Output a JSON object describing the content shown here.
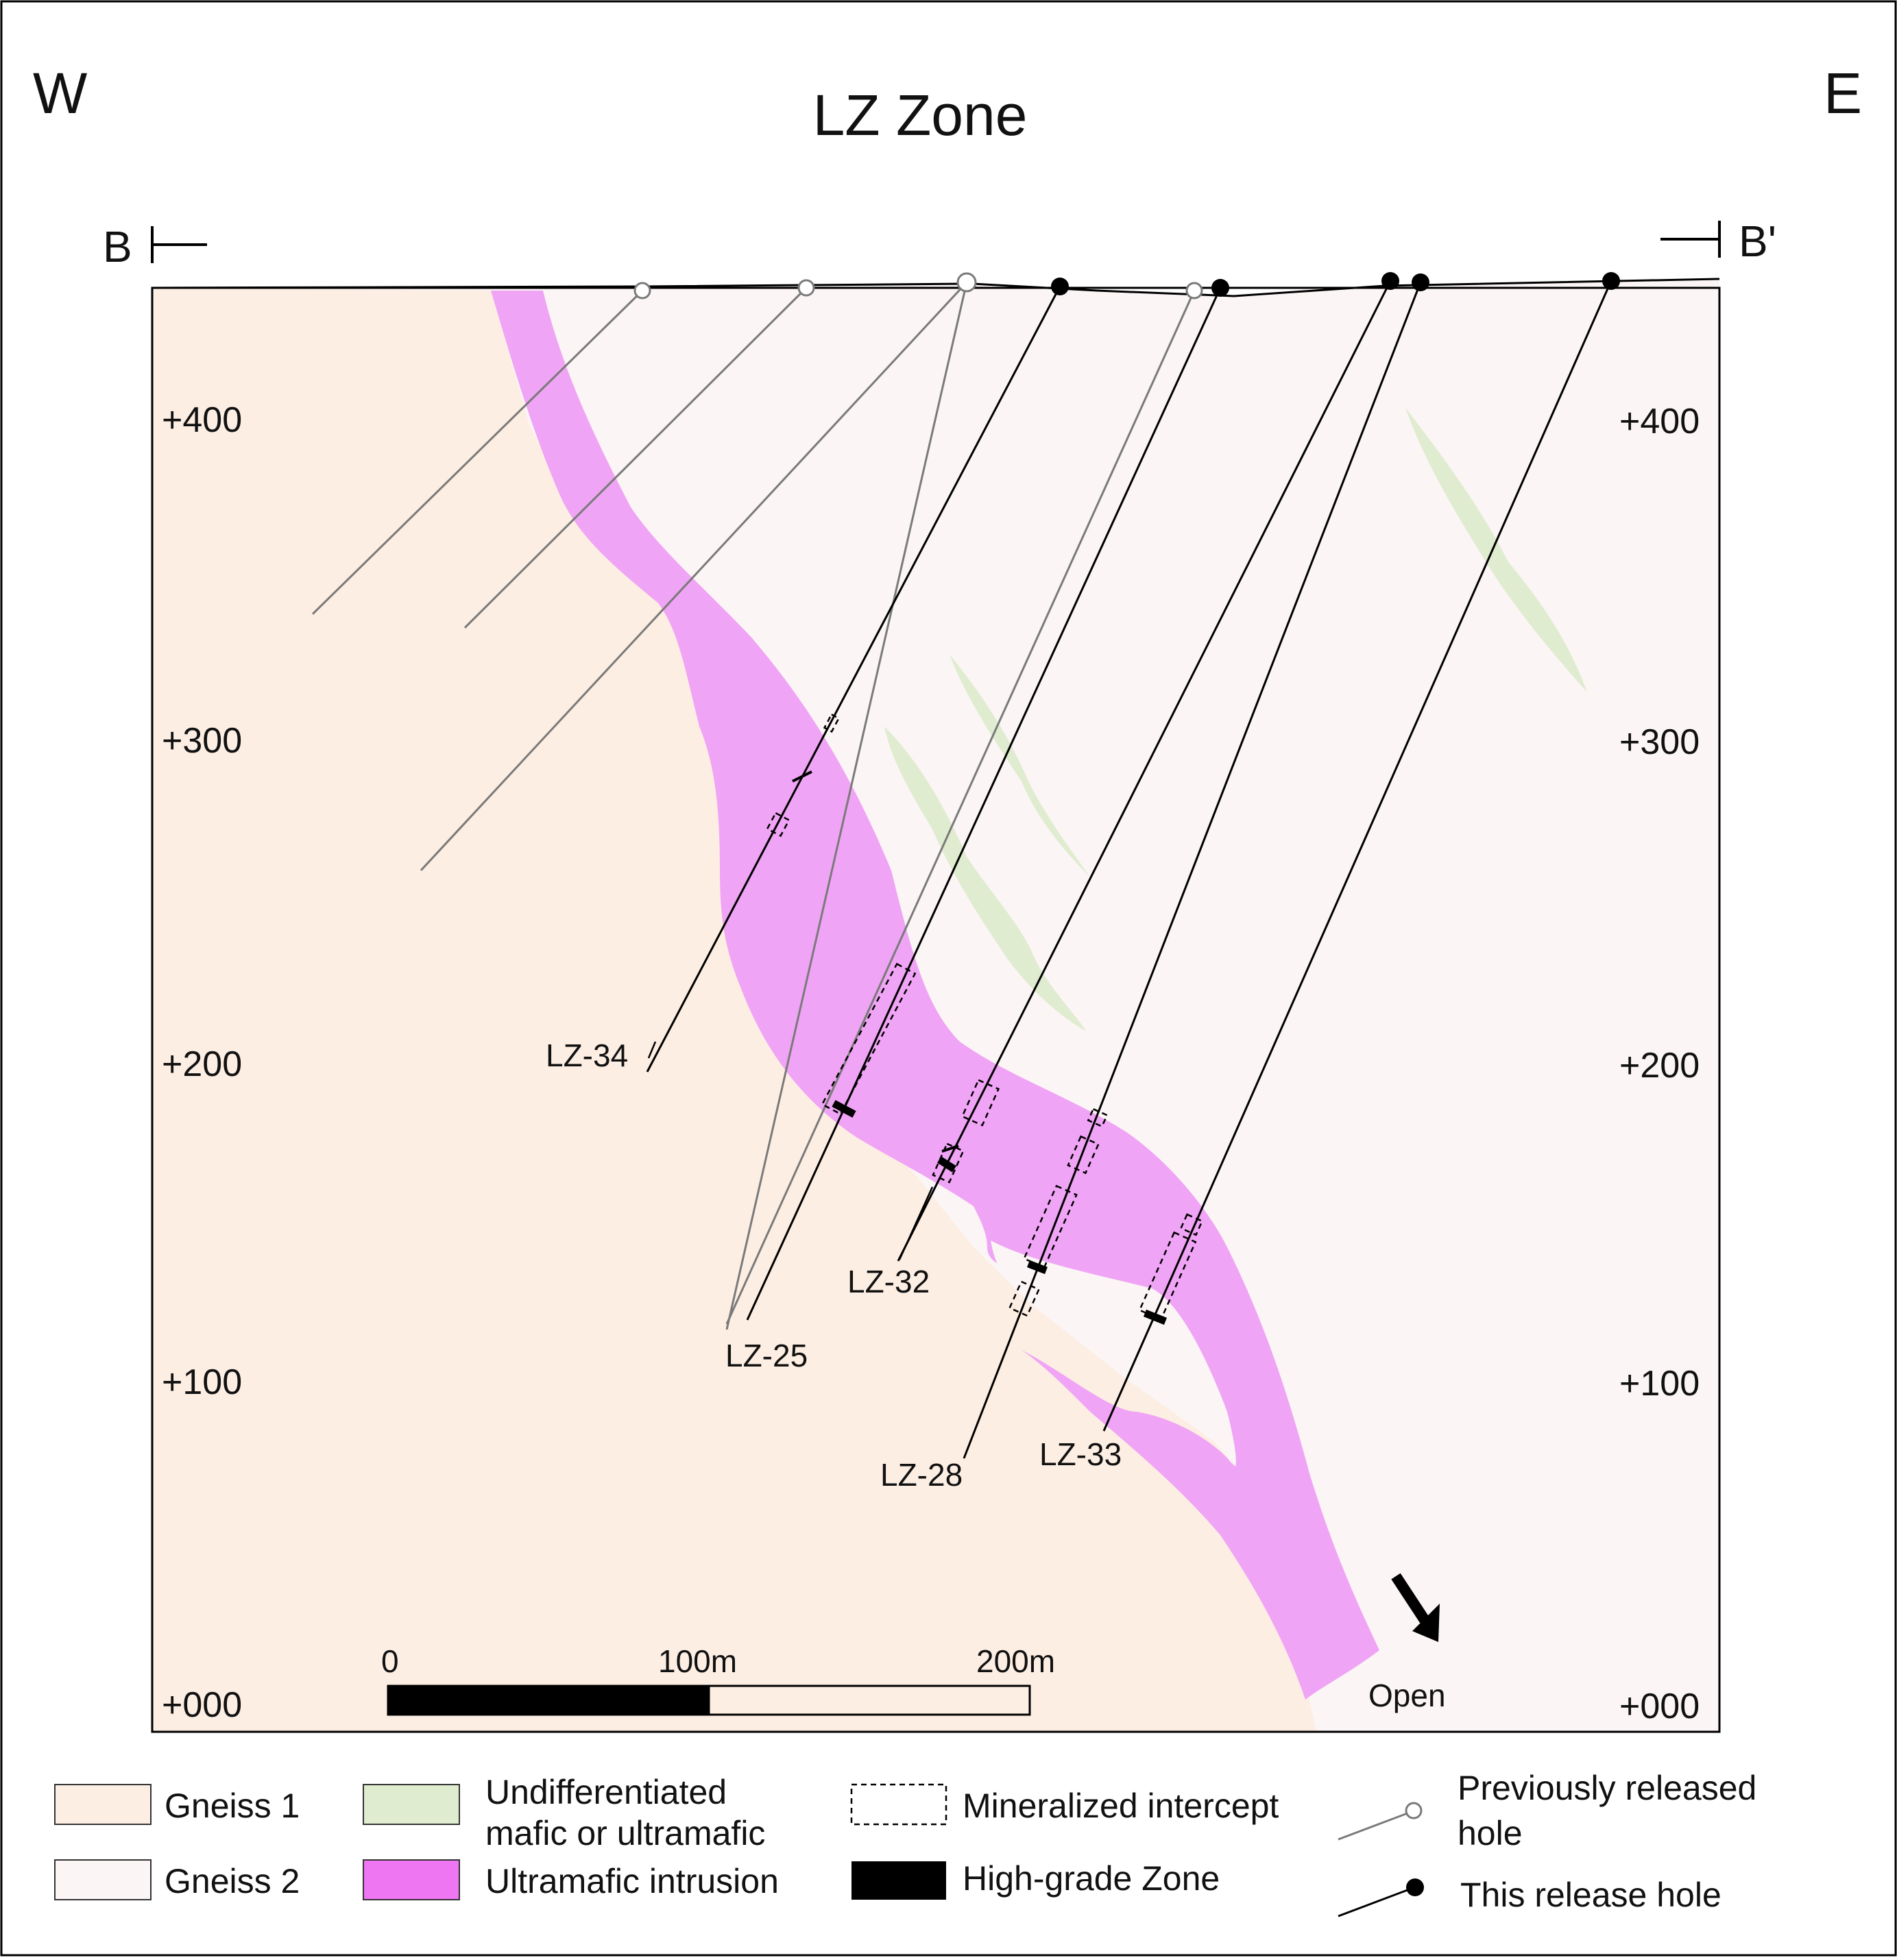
{
  "orientation": {
    "west": "W",
    "east": "E"
  },
  "title": "LZ Zone",
  "section": {
    "start": "B",
    "end": "B'"
  },
  "elevations": {
    "left": [
      "+400",
      "+300",
      "+200",
      "+100",
      "+000"
    ],
    "right": [
      "+400",
      "+300",
      "+200",
      "+100",
      "+000"
    ]
  },
  "holes": {
    "lz34": "LZ-34",
    "lz25": "LZ-25",
    "lz32": "LZ-32",
    "lz28": "LZ-28",
    "lz33": "LZ-33"
  },
  "scale_bar": {
    "zero": "0",
    "mid": "100m",
    "end": "200m"
  },
  "open_label": "Open",
  "colors": {
    "gneiss1": "#fdeee3",
    "gneiss2": "#fbf5f5",
    "ultramafic": "#f0a4f5",
    "ultramafic_legend": "#ee76f2",
    "mafic": "#e0ecd0",
    "prev_hole": "#7a7a7a",
    "new_hole": "#000000"
  },
  "legend": {
    "gneiss1": "Gneiss 1",
    "gneiss2": "Gneiss 2",
    "mafic_line1": "Undifferentiated",
    "mafic_line2": "mafic or ultramafic",
    "ultramafic": "Ultramafic intrusion",
    "mineralized": "Mineralized intercept",
    "high_grade": "High-grade Zone",
    "prev_line1": "Previously released",
    "prev_line2": "hole",
    "this_release": "This release hole"
  }
}
